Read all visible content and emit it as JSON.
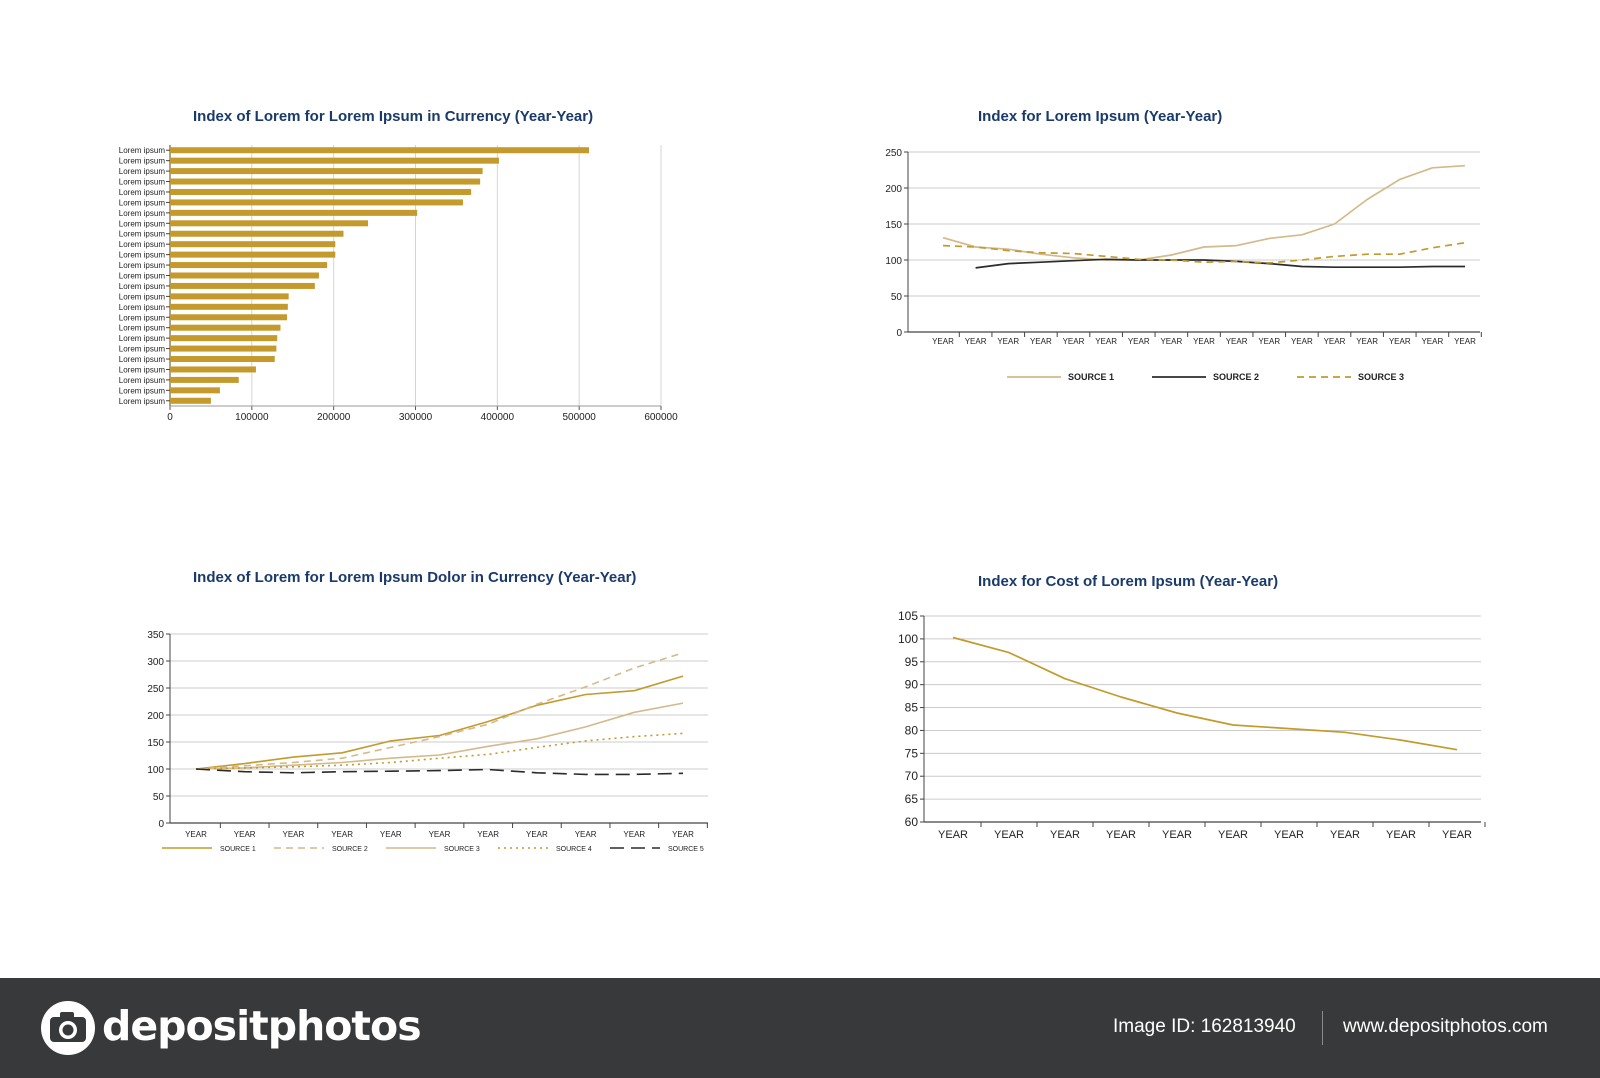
{
  "charts": {
    "bar": {
      "title": "Index of Lorem for Lorem Ipsum in Currency (Year-Year)"
    },
    "line1": {
      "title": "Index for Lorem Ipsum (Year-Year)"
    },
    "line2": {
      "title": "Index of Lorem for Lorem Ipsum Dolor in Currency (Year-Year)"
    },
    "line3": {
      "title": "Index for Cost of Lorem Ipsum (Year-Year)"
    }
  },
  "footer": {
    "logo": "depositphotos",
    "image_id": "Image ID: 162813940",
    "url": "www.depositphotos.com"
  },
  "colors": {
    "title": "#1a3a6b",
    "bar": "#c49a2c",
    "gold": "#c49a2c",
    "tan": "#d4b98a",
    "dark": "#2b2b2b",
    "grid": "#cccccc",
    "footer_bg": "#37393b"
  },
  "chart_data": [
    {
      "type": "bar",
      "orientation": "horizontal",
      "title": "Index of Lorem for Lorem Ipsum in Currency (Year-Year)",
      "categories": [
        "Lorem ipsum",
        "Lorem ipsum",
        "Lorem ipsum",
        "Lorem ipsum",
        "Lorem ipsum",
        "Lorem ipsum",
        "Lorem ipsum",
        "Lorem ipsum",
        "Lorem ipsum",
        "Lorem ipsum",
        "Lorem ipsum",
        "Lorem ipsum",
        "Lorem ipsum",
        "Lorem ipsum",
        "Lorem ipsum",
        "Lorem ipsum",
        "Lorem ipsum",
        "Lorem ipsum",
        "Lorem ipsum",
        "Lorem ipsum",
        "Lorem ipsum",
        "Lorem ipsum",
        "Lorem ipsum",
        "Lorem ipsum",
        "Lorem ipsum"
      ],
      "values": [
        512000,
        402000,
        382000,
        379000,
        368000,
        358000,
        302000,
        242000,
        212000,
        202000,
        202000,
        192000,
        182000,
        177000,
        145000,
        144000,
        143000,
        135000,
        131000,
        130000,
        128000,
        105000,
        84000,
        61000,
        50000
      ],
      "xticks": [
        "0",
        "100000",
        "200000",
        "300000",
        "400000",
        "500000",
        "600000"
      ],
      "xlim": [
        0,
        600000
      ],
      "grid": true
    },
    {
      "type": "line",
      "title": "Index for Lorem Ipsum (Year-Year)",
      "categories": [
        "YEAR",
        "YEAR",
        "YEAR",
        "YEAR",
        "YEAR",
        "YEAR",
        "YEAR",
        "YEAR",
        "YEAR",
        "YEAR",
        "YEAR",
        "YEAR",
        "YEAR",
        "YEAR",
        "YEAR",
        "YEAR",
        "YEAR"
      ],
      "yticks": [
        "0",
        "50",
        "100",
        "150",
        "200",
        "250"
      ],
      "ylim": [
        0,
        250
      ],
      "grid": true,
      "legend": "bottom",
      "series": [
        {
          "name": "SOURCE 1",
          "color": "#d4b98a",
          "style": "solid",
          "values": [
            131,
            118,
            115,
            108,
            103,
            100,
            100,
            107,
            118,
            120,
            130,
            135,
            150,
            184,
            212,
            228,
            231
          ]
        },
        {
          "name": "SOURCE 2",
          "color": "#2b2b2b",
          "style": "solid",
          "values": [
            null,
            89,
            95,
            97,
            99,
            101,
            100,
            100,
            100,
            98,
            95,
            91,
            90,
            90,
            90,
            91,
            91
          ]
        },
        {
          "name": "SOURCE 3",
          "color": "#c49a2c",
          "style": "dashed",
          "values": [
            120,
            118,
            113,
            110,
            109,
            105,
            101,
            100,
            97,
            98,
            96,
            100,
            105,
            108,
            108,
            117,
            124
          ]
        }
      ]
    },
    {
      "type": "line",
      "title": "Index of Lorem for Lorem Ipsum Dolor in Currency (Year-Year)",
      "categories": [
        "YEAR",
        "YEAR",
        "YEAR",
        "YEAR",
        "YEAR",
        "YEAR",
        "YEAR",
        "YEAR",
        "YEAR",
        "YEAR",
        "YEAR"
      ],
      "yticks": [
        "0",
        "50",
        "100",
        "150",
        "200",
        "250",
        "300",
        "350"
      ],
      "ylim": [
        0,
        350
      ],
      "grid": true,
      "legend": "bottom",
      "series": [
        {
          "name": "SOURCE 1",
          "color": "#c49a2c",
          "style": "solid",
          "values": [
            100,
            110,
            122,
            130,
            152,
            162,
            188,
            218,
            238,
            245,
            272
          ]
        },
        {
          "name": "SOURCE 2",
          "color": "#d4b98a",
          "style": "dashed",
          "values": [
            100,
            106,
            112,
            120,
            140,
            160,
            183,
            220,
            252,
            287,
            315
          ]
        },
        {
          "name": "SOURCE 3",
          "color": "#d4b98a",
          "style": "solid",
          "values": [
            100,
            102,
            107,
            112,
            120,
            126,
            142,
            156,
            178,
            205,
            222
          ]
        },
        {
          "name": "SOURCE 4",
          "color": "#c49a2c",
          "style": "dotted",
          "values": [
            100,
            102,
            104,
            107,
            112,
            120,
            127,
            140,
            152,
            160,
            166
          ]
        },
        {
          "name": "SOURCE 5",
          "color": "#2b2b2b",
          "style": "longdash",
          "values": [
            100,
            95,
            93,
            95,
            96,
            97,
            99,
            93,
            90,
            90,
            92
          ]
        }
      ]
    },
    {
      "type": "line",
      "title": "Index for Cost of Lorem Ipsum (Year-Year)",
      "categories": [
        "YEAR",
        "YEAR",
        "YEAR",
        "YEAR",
        "YEAR",
        "YEAR",
        "YEAR",
        "YEAR",
        "YEAR",
        "YEAR"
      ],
      "yticks": [
        "60",
        "65",
        "70",
        "75",
        "80",
        "85",
        "90",
        "95",
        "100",
        "105"
      ],
      "ylim": [
        60,
        105
      ],
      "grid": true,
      "series": [
        {
          "color": "#c49a2c",
          "style": "solid",
          "values": [
            100.3,
            97,
            91.3,
            87.3,
            83.8,
            81.2,
            80.4,
            79.6,
            77.9,
            75.8
          ]
        }
      ]
    }
  ]
}
